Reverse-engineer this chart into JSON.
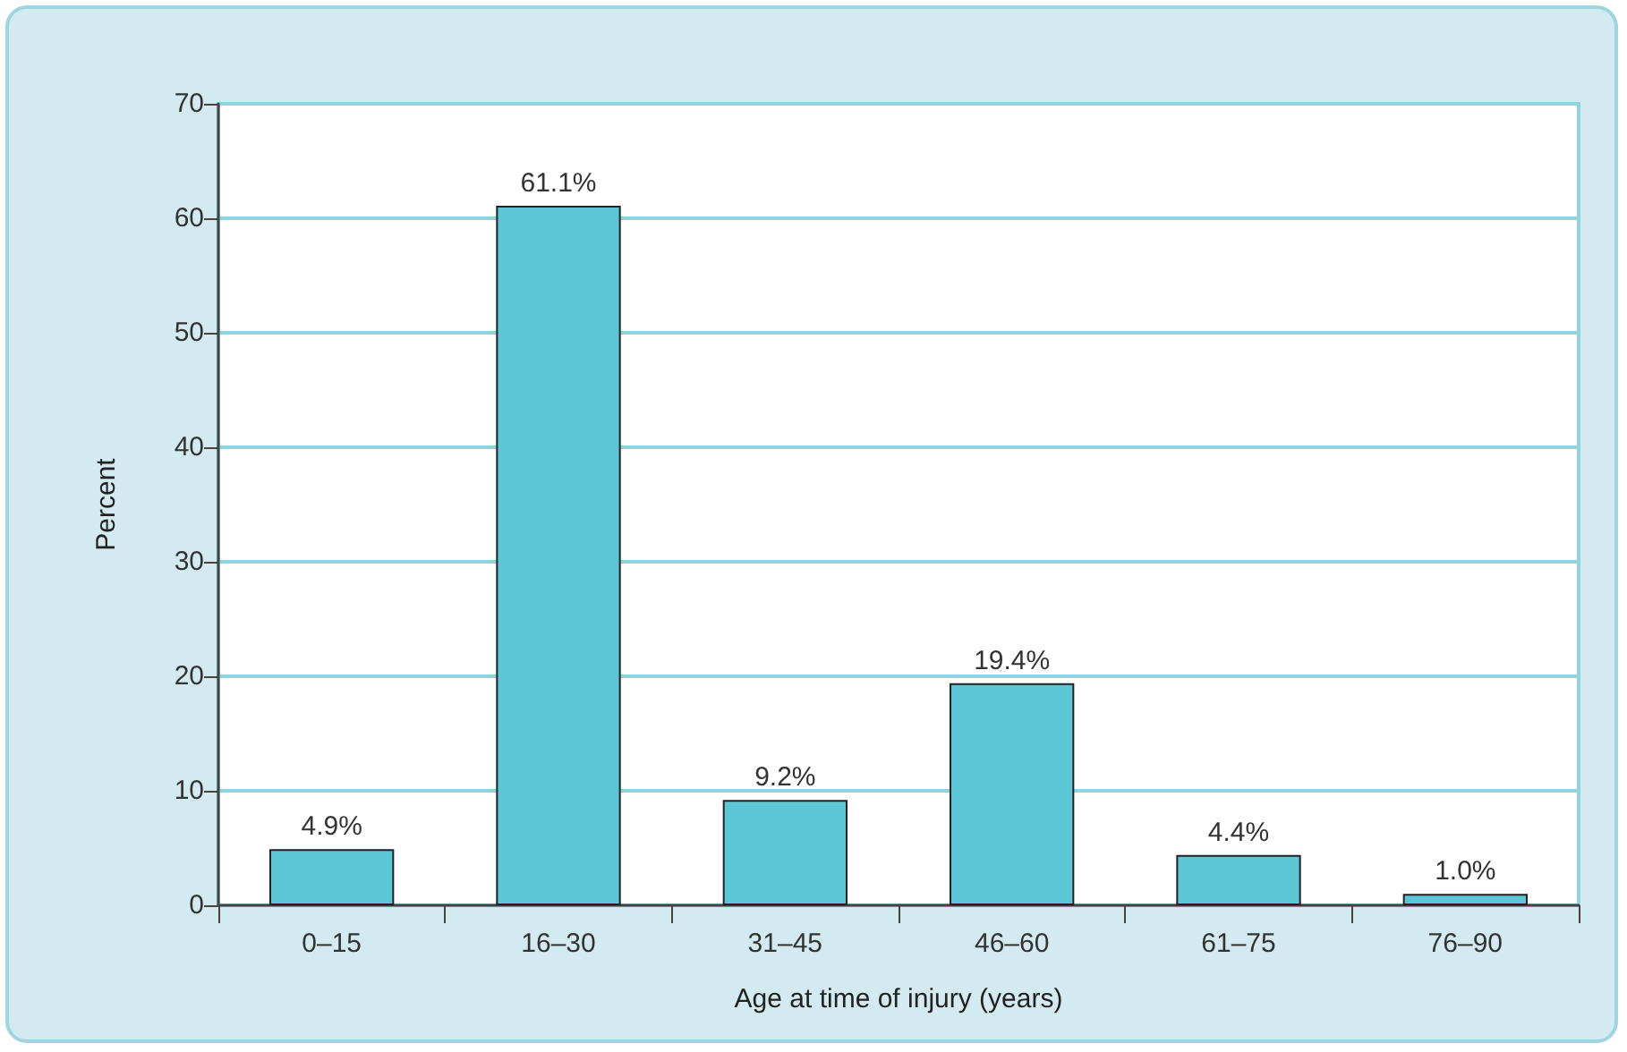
{
  "chart_data": {
    "type": "bar",
    "xlabel": "Age at time of injury (years)",
    "ylabel": "Percent",
    "categories": [
      "0–15",
      "16–30",
      "31–45",
      "46–60",
      "61–75",
      "76–90"
    ],
    "values": [
      4.9,
      61.1,
      9.2,
      19.4,
      4.4,
      1.0
    ],
    "value_labels": [
      "4.9%",
      "61.1%",
      "9.2%",
      "19.4%",
      "4.4%",
      "1.0%"
    ],
    "color": "#5bc6d6",
    "ylim": [
      0,
      70
    ],
    "yticks": [
      0,
      10,
      20,
      30,
      40,
      50,
      60,
      70
    ],
    "grid": "y"
  }
}
